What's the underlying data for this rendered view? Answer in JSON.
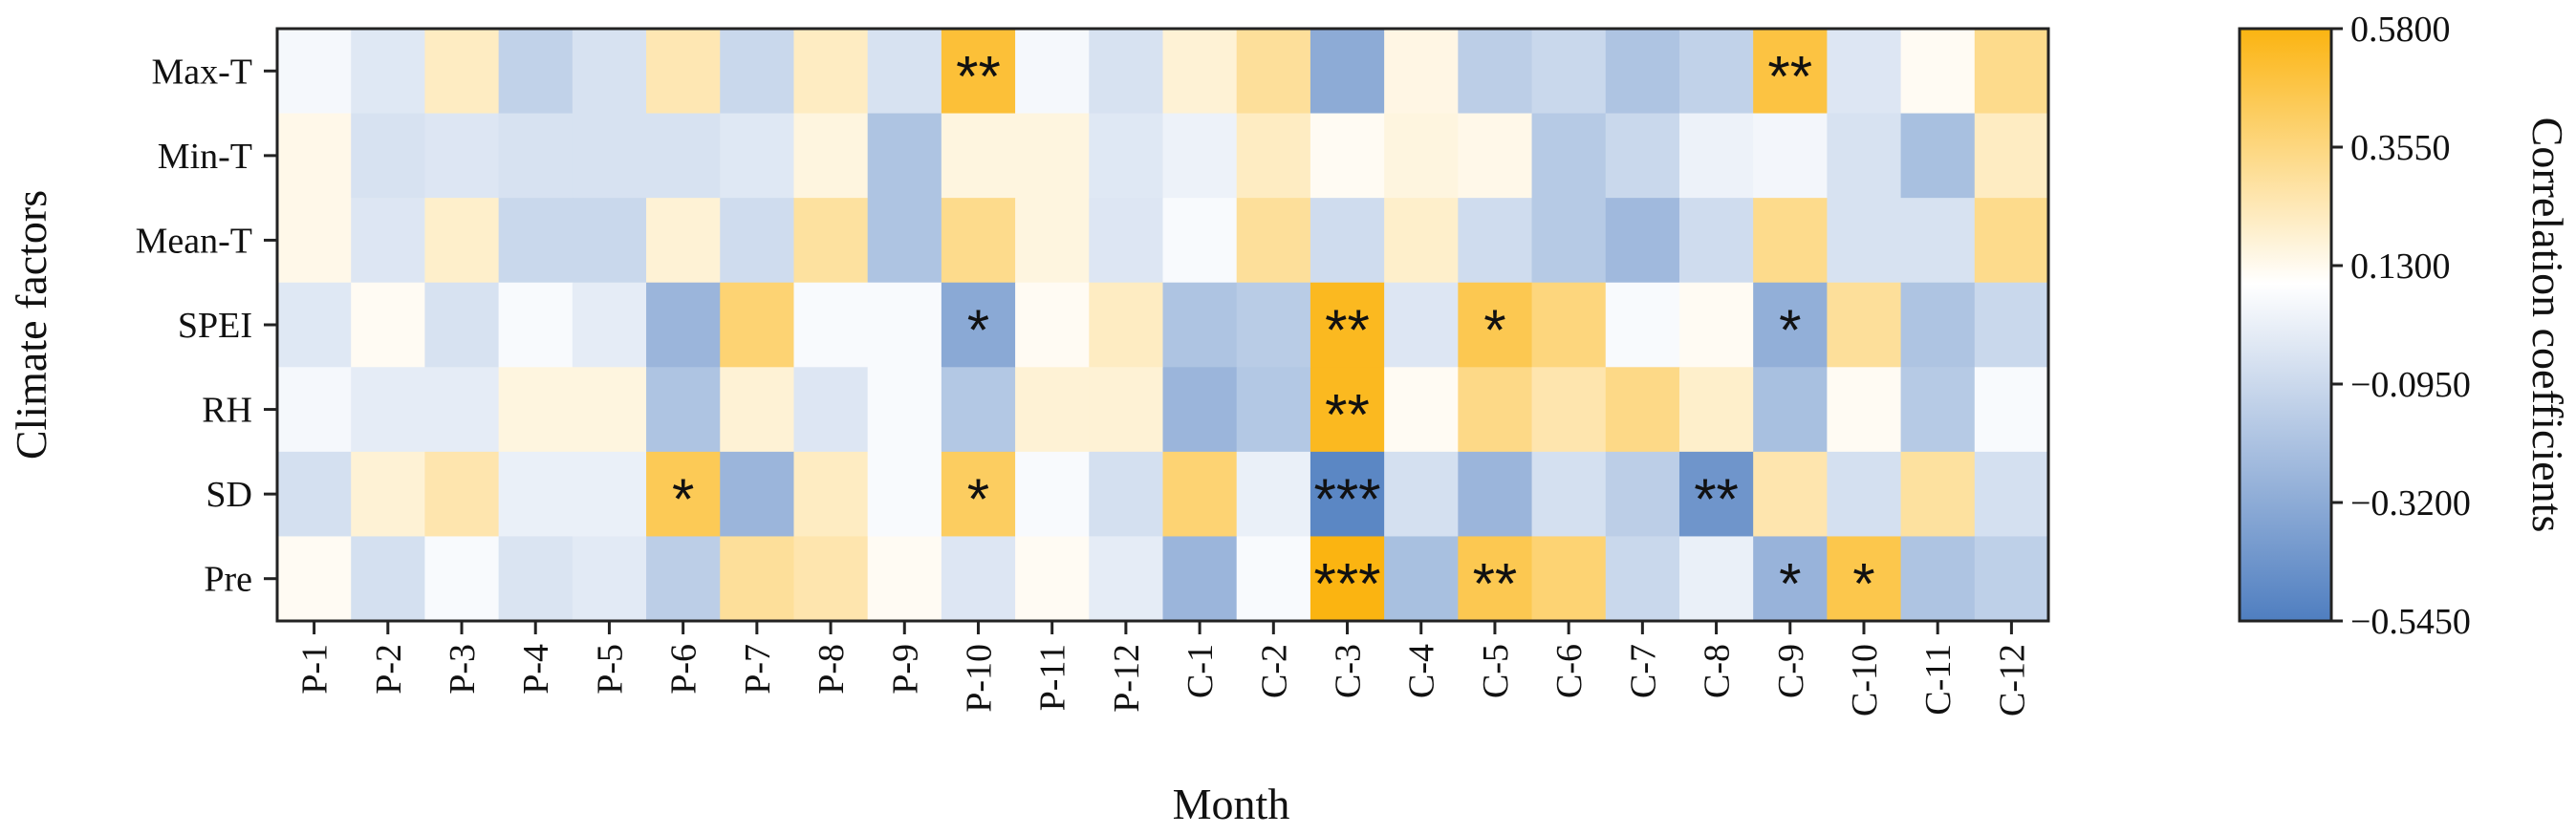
{
  "chart_data": {
    "type": "heatmap",
    "title": "",
    "xlabel": "Month",
    "ylabel": "Climate factors",
    "colorbar_label": "Correlation coefficients",
    "x_categories": [
      "P-1",
      "P-2",
      "P-3",
      "P-4",
      "P-5",
      "P-6",
      "P-7",
      "P-8",
      "P-9",
      "P-10",
      "P-11",
      "P-12",
      "C-1",
      "C-2",
      "C-3",
      "C-4",
      "C-5",
      "C-6",
      "C-7",
      "C-8",
      "C-9",
      "C-10",
      "C-11",
      "C-12"
    ],
    "y_categories": [
      "Max-T",
      "Min-T",
      "Mean-T",
      "SPEI",
      "RH",
      "SD",
      "Pre"
    ],
    "value_range": [
      -0.545,
      0.58
    ],
    "colorbar_ticks": [
      "0.5800",
      "0.3550",
      "0.1300",
      "−0.0950",
      "−0.3200",
      "−0.5450"
    ],
    "colorbar_tick_values": [
      0.58,
      0.355,
      0.13,
      -0.095,
      -0.32,
      -0.545
    ],
    "colors": {
      "negative": "#4f7ec0",
      "neutral": "#ffffff",
      "positive": "#fbb411"
    },
    "values": [
      [
        0.06,
        -0.02,
        0.22,
        -0.13,
        -0.05,
        0.25,
        -0.1,
        0.22,
        -0.05,
        0.5,
        0.06,
        -0.05,
        0.18,
        0.3,
        -0.32,
        0.15,
        -0.15,
        -0.1,
        -0.2,
        -0.13,
        0.48,
        -0.03,
        0.12,
        0.33
      ],
      [
        0.14,
        -0.05,
        -0.03,
        -0.05,
        -0.05,
        -0.05,
        -0.02,
        0.16,
        -0.2,
        0.16,
        0.16,
        -0.02,
        0.03,
        0.22,
        0.12,
        0.16,
        0.14,
        -0.17,
        -0.1,
        0.03,
        0.05,
        -0.05,
        -0.22,
        0.22
      ],
      [
        0.14,
        -0.03,
        0.2,
        -0.1,
        -0.1,
        0.18,
        -0.08,
        0.29,
        -0.2,
        0.33,
        0.16,
        -0.03,
        0.07,
        0.3,
        -0.08,
        0.2,
        -0.08,
        -0.17,
        -0.25,
        -0.08,
        0.33,
        -0.05,
        -0.05,
        0.33
      ],
      [
        -0.02,
        0.12,
        -0.05,
        0.07,
        0.0,
        -0.27,
        0.38,
        0.07,
        0.07,
        -0.33,
        0.12,
        0.22,
        -0.2,
        -0.16,
        0.55,
        -0.03,
        0.45,
        0.36,
        0.07,
        0.12,
        -0.3,
        0.3,
        -0.2,
        -0.1
      ],
      [
        0.06,
        0.0,
        0.0,
        0.16,
        0.16,
        -0.2,
        0.18,
        -0.03,
        0.07,
        -0.18,
        0.18,
        0.18,
        -0.27,
        -0.18,
        0.55,
        0.12,
        0.34,
        0.26,
        0.34,
        0.2,
        -0.22,
        0.12,
        -0.17,
        0.07
      ],
      [
        -0.06,
        0.18,
        0.26,
        0.02,
        0.02,
        0.44,
        -0.27,
        0.22,
        0.07,
        0.42,
        0.07,
        -0.06,
        0.38,
        0.02,
        -0.5,
        -0.06,
        -0.27,
        -0.06,
        -0.15,
        -0.43,
        0.26,
        -0.06,
        0.29,
        -0.06
      ],
      [
        0.12,
        -0.06,
        0.07,
        -0.04,
        -0.01,
        -0.15,
        0.3,
        0.26,
        0.12,
        -0.03,
        0.12,
        0.0,
        -0.27,
        0.07,
        0.58,
        -0.22,
        0.45,
        0.38,
        -0.1,
        0.02,
        -0.28,
        0.46,
        -0.2,
        -0.14
      ]
    ],
    "annotations": [
      {
        "row": "Max-T",
        "col": "P-10",
        "text": "**"
      },
      {
        "row": "Max-T",
        "col": "C-9",
        "text": "**"
      },
      {
        "row": "SPEI",
        "col": "P-10",
        "text": "*"
      },
      {
        "row": "SPEI",
        "col": "C-3",
        "text": "**"
      },
      {
        "row": "SPEI",
        "col": "C-5",
        "text": "*"
      },
      {
        "row": "SPEI",
        "col": "C-9",
        "text": "*"
      },
      {
        "row": "RH",
        "col": "C-3",
        "text": "**"
      },
      {
        "row": "SD",
        "col": "P-6",
        "text": "*"
      },
      {
        "row": "SD",
        "col": "P-10",
        "text": "*"
      },
      {
        "row": "SD",
        "col": "C-3",
        "text": "***"
      },
      {
        "row": "SD",
        "col": "C-8",
        "text": "**"
      },
      {
        "row": "Pre",
        "col": "C-3",
        "text": "***"
      },
      {
        "row": "Pre",
        "col": "C-5",
        "text": "**"
      },
      {
        "row": "Pre",
        "col": "C-9",
        "text": "*"
      },
      {
        "row": "Pre",
        "col": "C-10",
        "text": "*"
      }
    ]
  }
}
